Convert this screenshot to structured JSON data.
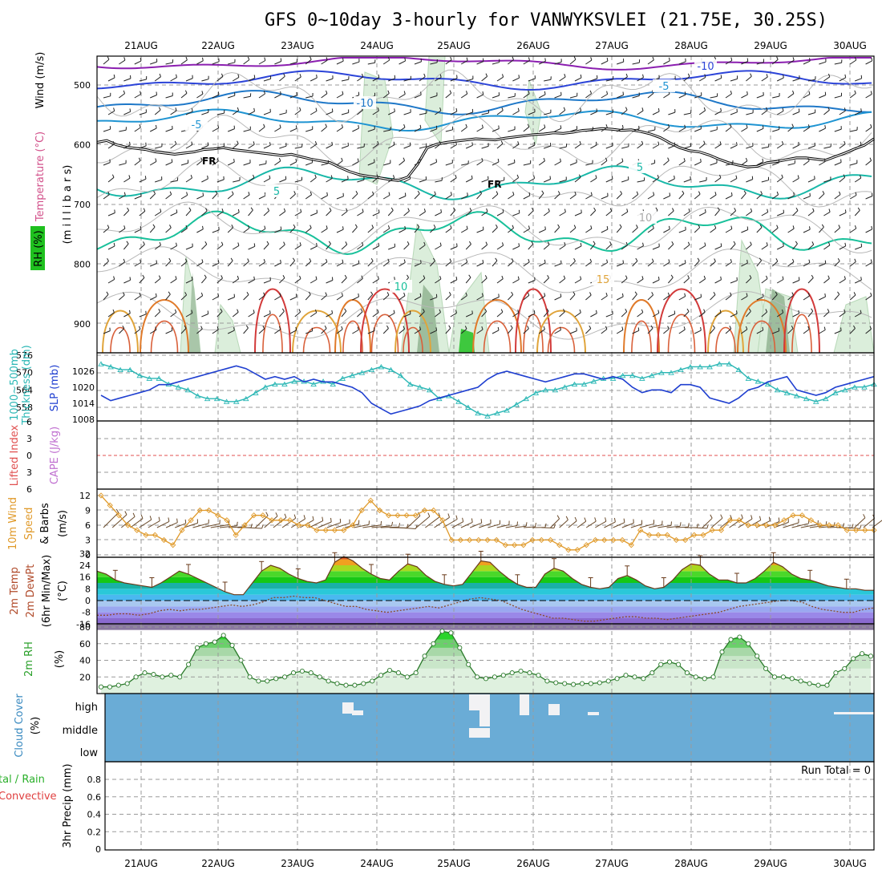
{
  "header": {
    "title": "GFS 0~10day 3-hourly for VANWYKSVLEI (21.75E, 30.25S)"
  },
  "dates": [
    "21AUG",
    "22AUG",
    "23AUG",
    "24AUG",
    "25AUG",
    "26AUG",
    "27AUG",
    "28AUG",
    "29AUG",
    "30AUG"
  ],
  "colors": {
    "frame": "#000000",
    "grid": "#9a9a9a",
    "slp": "#1f3fd0",
    "thickness": "#2ab7b5",
    "wind10m": "#e09a2a",
    "rh_green": "#1fc01f",
    "rh_light": "#dff1df",
    "cloud": "#6aacd6",
    "temp_freeze": "#000000"
  },
  "labels": {
    "upper_ylabel_wind": "Wind (m/s)",
    "upper_ylabel_temp": "Temperature (°C)",
    "upper_ylabel_rh": "RH (%)",
    "upper_ylabel_mb": "(m i l l i b a r s)",
    "slp_label": "SLP (mb)",
    "thk_label": "1000~500mb\nThickness (dm)",
    "li_label": "Lifted Index",
    "cape_label": "CAPE (J/kg)",
    "wind10_label1": "10m Wind",
    "wind10_label2": "Speed",
    "wind10_label3": "& Barbs",
    "wind10_units": "(m/s)",
    "temp_label1": "2m Temp",
    "temp_label2": "2m DewPt",
    "temp_label3": "(6hr Min/Max)",
    "temp_units": "(°C)",
    "rh_label": "2m RH",
    "rh_units": "(%)",
    "cloud_label": "Cloud Cover",
    "cloud_units": "(%)",
    "precip_label1": "tal / Rain",
    "precip_label2": "Convective",
    "precip_units": "3hr Precip (mm)",
    "run_total": "Run Total = 0",
    "fr1": "FR",
    "fr2": "FR"
  },
  "chart_data": [
    {
      "type": "contour",
      "name": "upper-air",
      "yticks": [
        500,
        600,
        700,
        800,
        900
      ],
      "contour_labels": [
        "-10",
        "-10",
        "-5",
        "-5",
        "5",
        "5",
        "10",
        "10",
        "15"
      ],
      "freezing_level_mb": [
        596,
        593,
        600,
        604,
        606,
        608,
        612,
        614,
        616,
        614,
        612,
        608,
        607,
        605,
        608,
        610,
        612,
        614,
        616,
        618,
        616,
        620,
        624,
        627,
        630,
        638,
        645,
        650,
        653,
        655,
        658,
        660,
        654,
        633,
        605,
        599,
        596,
        594,
        592,
        590,
        591,
        592,
        589,
        587,
        585,
        583,
        582,
        580,
        581,
        579,
        576,
        575,
        573,
        574,
        576,
        575,
        578,
        582,
        588,
        597,
        605,
        610,
        612,
        617,
        624,
        630,
        634,
        637,
        636,
        630,
        628,
        625,
        622,
        622,
        624,
        626,
        620,
        614,
        607,
        601,
        590
      ]
    },
    {
      "type": "line",
      "name": "slp-thickness",
      "ylabel_left_ticks": [
        558,
        564,
        570,
        576
      ],
      "ylabel_right_ticks": [
        1008,
        1014,
        1020,
        1026
      ],
      "slp_mb": [
        1017,
        1015,
        1016,
        1017,
        1018,
        1019,
        1021,
        1021,
        1022,
        1023,
        1024,
        1025,
        1026,
        1027,
        1028,
        1027,
        1025,
        1023,
        1024,
        1023,
        1024,
        1022,
        1023,
        1022,
        1022,
        1021,
        1020,
        1018,
        1014,
        1012,
        1010,
        1011,
        1012,
        1013,
        1015,
        1016,
        1017,
        1018,
        1019,
        1020,
        1023,
        1025,
        1026,
        1025,
        1024,
        1023,
        1022,
        1023,
        1024,
        1025,
        1025,
        1024,
        1023,
        1024,
        1023,
        1020,
        1018,
        1019,
        1019,
        1018,
        1021,
        1021,
        1020,
        1016,
        1015,
        1014,
        1016,
        1019,
        1020,
        1022,
        1023,
        1024,
        1019,
        1018,
        1017,
        1018,
        1020,
        1021,
        1022,
        1023,
        1024
      ],
      "thickness_dm": [
        573,
        572,
        571,
        571,
        569,
        568,
        568,
        566,
        565,
        564,
        562,
        561,
        561,
        560,
        560,
        561,
        563,
        565,
        566,
        566,
        567,
        567,
        566,
        567,
        566,
        568,
        569,
        570,
        571,
        572,
        571,
        569,
        566,
        565,
        564,
        561,
        562,
        560,
        558,
        556,
        555,
        556,
        557,
        559,
        561,
        563,
        564,
        564,
        565,
        566,
        566,
        567,
        568,
        568,
        569,
        569,
        568,
        569,
        570,
        570,
        571,
        572,
        572,
        572,
        573,
        573,
        571,
        568,
        567,
        566,
        564,
        563,
        562,
        561,
        560,
        561,
        563,
        564,
        565,
        565,
        566
      ]
    },
    {
      "type": "line",
      "name": "lifted-index-cape",
      "yticks": [
        "6",
        "3",
        "0",
        "3",
        "6"
      ],
      "lifted_index": []
    },
    {
      "type": "line",
      "name": "wind10m",
      "yticks": [
        0,
        3,
        6,
        9,
        12
      ],
      "speed_ms": [
        12,
        10,
        8,
        6,
        5,
        4,
        4,
        3,
        2,
        5,
        7,
        9,
        9,
        8,
        7,
        4,
        6,
        8,
        8,
        7,
        7,
        7,
        6,
        6,
        5,
        5,
        5,
        5,
        6,
        9,
        11,
        9,
        8,
        8,
        8,
        8,
        9,
        9,
        7,
        3,
        3,
        3,
        3,
        3,
        3,
        2,
        2,
        2,
        3,
        3,
        3,
        2,
        1,
        1,
        2,
        3,
        3,
        3,
        3,
        2,
        5,
        4,
        4,
        4,
        3,
        3,
        4,
        4,
        5,
        5,
        7,
        7,
        6,
        6,
        6,
        6,
        7,
        8,
        8,
        7,
        6,
        6,
        6,
        5,
        5,
        5,
        5
      ]
    },
    {
      "type": "area",
      "name": "temp-dewpt",
      "yticks": [
        -16,
        -8,
        0,
        8,
        16,
        24,
        32
      ],
      "temp_c": [
        20,
        18,
        14,
        12,
        11,
        10,
        9,
        12,
        16,
        20,
        18,
        15,
        12,
        9,
        6,
        4,
        4,
        12,
        20,
        24,
        22,
        18,
        15,
        13,
        12,
        14,
        26,
        30,
        27,
        22,
        18,
        15,
        14,
        20,
        25,
        23,
        17,
        13,
        11,
        10,
        11,
        19,
        27,
        26,
        20,
        15,
        11,
        9,
        9,
        18,
        22,
        20,
        15,
        11,
        9,
        8,
        9,
        15,
        17,
        14,
        10,
        8,
        9,
        14,
        21,
        25,
        24,
        18,
        14,
        14,
        12,
        12,
        15,
        20,
        26,
        23,
        18,
        15,
        14,
        12,
        10,
        9,
        8,
        8,
        7,
        7
      ],
      "dewpt_c": [
        -10,
        -10,
        -9,
        -9,
        -10,
        -9,
        -7,
        -6,
        -7,
        -6,
        -6,
        -5,
        -4,
        -3,
        -4,
        -3,
        -1,
        2,
        2,
        3,
        2,
        2,
        0,
        -2,
        -4,
        -4,
        -6,
        -7,
        -8,
        -7,
        -6,
        -5,
        -4,
        -5,
        -3,
        -1,
        1,
        2,
        1,
        0,
        -3,
        -6,
        -8,
        -10,
        -12,
        -12,
        -13,
        -14,
        -14,
        -13,
        -12,
        -11,
        -11,
        -12,
        -12,
        -13,
        -12,
        -11,
        -10,
        -9,
        -8,
        -6,
        -4,
        -3,
        -2,
        -1,
        0,
        0,
        -1,
        -4,
        -6,
        -7,
        -8,
        -8,
        -6,
        -5
      ]
    },
    {
      "type": "area",
      "name": "rh2m",
      "yticks": [
        20,
        40,
        60,
        80
      ],
      "rh_pct": [
        8,
        8,
        10,
        12,
        20,
        25,
        23,
        20,
        22,
        20,
        35,
        55,
        60,
        62,
        70,
        58,
        40,
        20,
        15,
        15,
        18,
        20,
        25,
        27,
        25,
        20,
        15,
        12,
        10,
        10,
        12,
        15,
        22,
        28,
        25,
        20,
        25,
        45,
        60,
        75,
        73,
        55,
        35,
        20,
        18,
        20,
        22,
        25,
        27,
        25,
        22,
        15,
        13,
        12,
        11,
        12,
        12,
        13,
        15,
        18,
        22,
        20,
        18,
        25,
        35,
        38,
        35,
        25,
        20,
        18,
        20,
        50,
        65,
        68,
        60,
        45,
        30,
        20,
        20,
        18,
        15,
        12,
        10,
        10,
        25,
        30,
        42,
        48,
        45
      ]
    },
    {
      "type": "heatmap",
      "name": "cloud-cover",
      "rows": [
        "high",
        "middle",
        "low"
      ],
      "cover": "mostly clear"
    },
    {
      "type": "bar",
      "name": "precip",
      "yticks": [
        0,
        0.2,
        0.4,
        0.6,
        0.8
      ],
      "total_mm": [],
      "run_total": 0
    }
  ]
}
